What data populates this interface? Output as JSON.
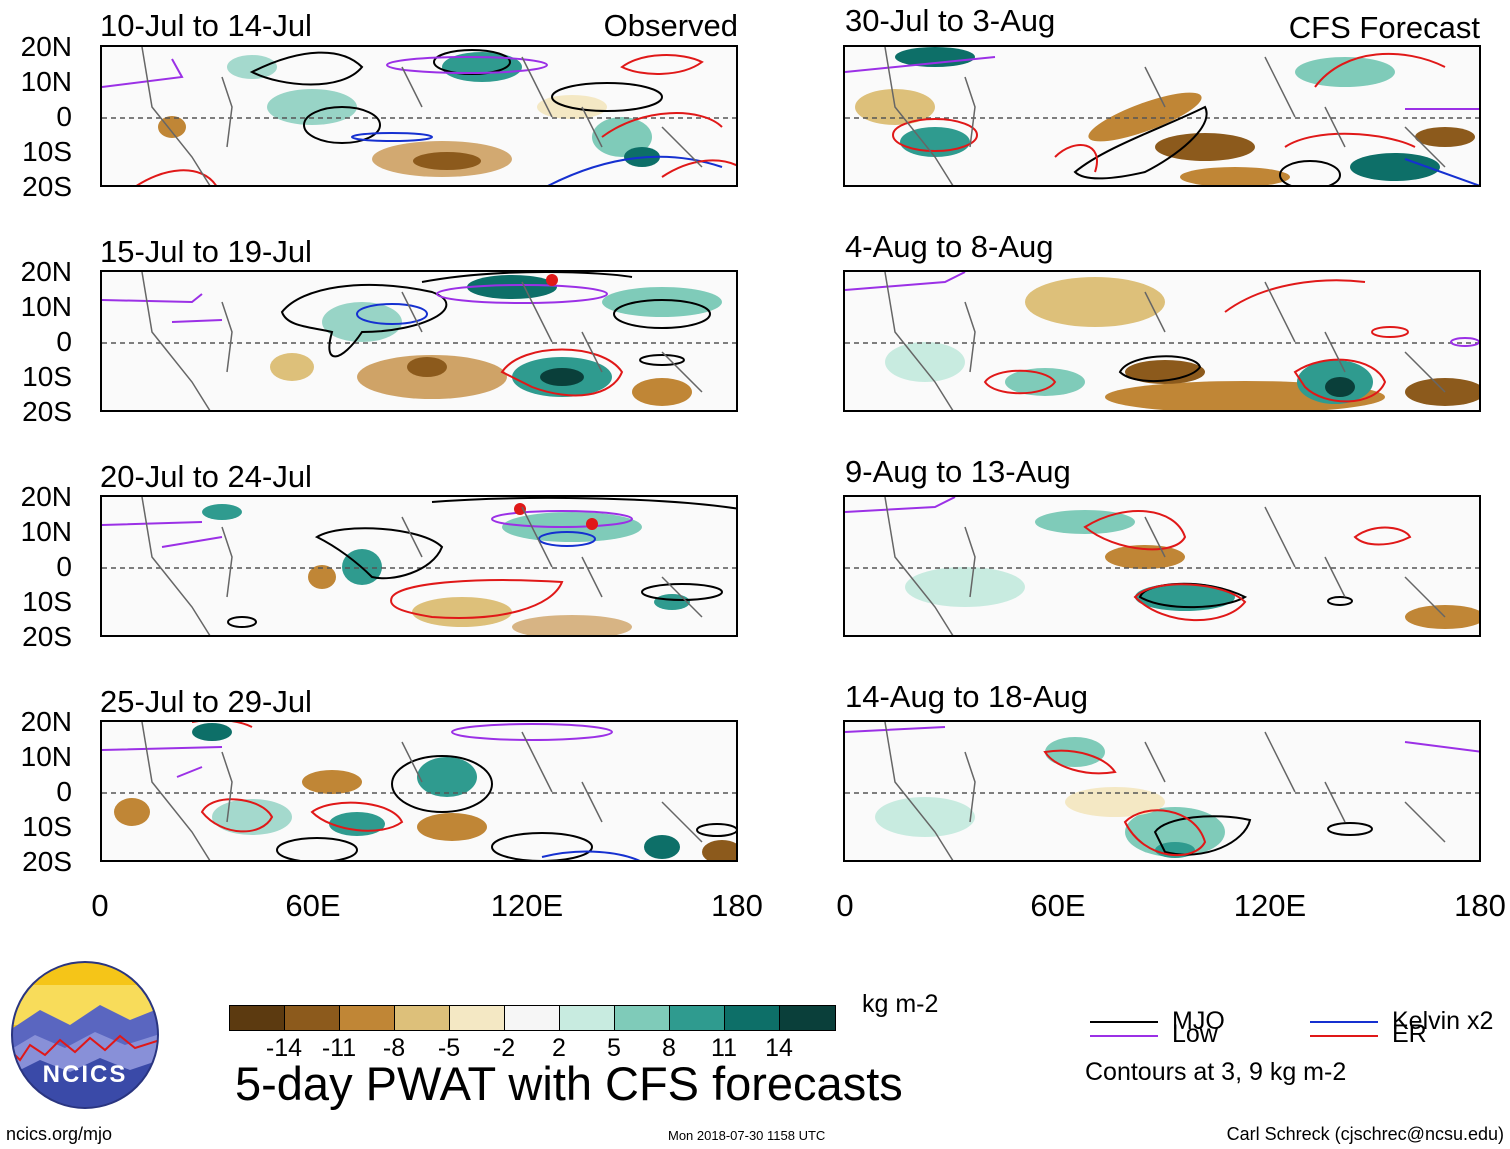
{
  "observed_label": "Observed",
  "forecast_label": "CFS Forecast",
  "panels_left": [
    {
      "title": "10-Jul to 14-Jul"
    },
    {
      "title": "15-Jul to 19-Jul"
    },
    {
      "title": "20-Jul to 24-Jul"
    },
    {
      "title": "25-Jul to 29-Jul"
    }
  ],
  "panels_right": [
    {
      "title": "30-Jul to 3-Aug"
    },
    {
      "title": "4-Aug to 8-Aug"
    },
    {
      "title": "9-Aug to 13-Aug"
    },
    {
      "title": "14-Aug to 18-Aug"
    }
  ],
  "lat_labels": [
    "20N",
    "10N",
    "0",
    "10S",
    "20S"
  ],
  "lon_labels": [
    "0",
    "60E",
    "120E",
    "180"
  ],
  "colorbar": {
    "ticks": [
      "-14",
      "-11",
      "-8",
      "-5",
      "-2",
      "2",
      "5",
      "8",
      "11",
      "14"
    ],
    "colors": [
      "#5c3a10",
      "#8c5a1c",
      "#c08636",
      "#ddc07a",
      "#f4e8c4",
      "#f6f6f6",
      "#c8ebe0",
      "#7fcbb9",
      "#2f9b8f",
      "#0d6f68",
      "#0a3f3a"
    ],
    "units": "kg m-2"
  },
  "title": "5-day PWAT with CFS forecasts",
  "legend": {
    "mjo": "MJO",
    "low": "Low",
    "kelvin": "Kelvin x2",
    "er": "ER",
    "contours_note": "Contours at 3, 9 kg m-2",
    "colors": {
      "mjo": "#000000",
      "low": "#9b30e6",
      "kelvin": "#1530d0",
      "er": "#e01818"
    }
  },
  "logo_text": "NCICS",
  "footer_url": "ncics.org/mjo",
  "timestamp": "Mon 2018-07-30 1158 UTC",
  "credit": "Carl Schreck (cjschrec@ncsu.edu)"
}
